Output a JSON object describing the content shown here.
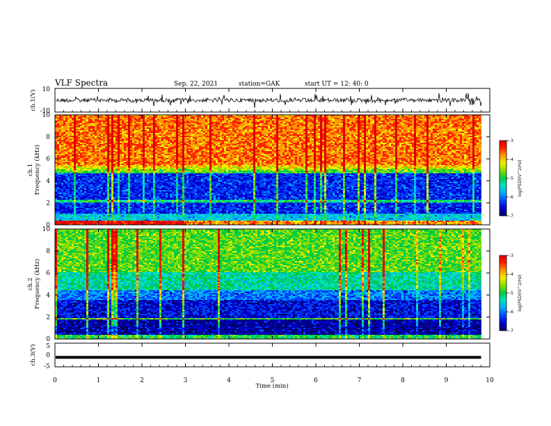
{
  "header": {
    "title": "VLF Spectra",
    "date": "Sep. 22, 2021",
    "station": "station=GAK",
    "start": "start UT =  12: 40: 0"
  },
  "chart_data": [
    {
      "type": "line",
      "name": "ch1-waveform",
      "ylabel": "ch.1(V)",
      "ylim": [
        -10,
        10
      ],
      "yticks": [
        "10",
        "-10"
      ],
      "xlim": [
        0,
        10
      ]
    },
    {
      "type": "heatmap",
      "name": "ch1-spectrogram",
      "ylabel": [
        "ch.1",
        "Frequency (kHz)"
      ],
      "ylim": [
        0,
        10
      ],
      "yticks": [
        "0",
        "2",
        "4",
        "6",
        "8",
        "10"
      ],
      "xlim": [
        0,
        10
      ],
      "colorbar": {
        "label": "log(PSD)(V^2/Hz)",
        "range": [
          -7,
          -3
        ],
        "ticks": [
          "-3",
          "-4",
          "-5",
          "-6",
          "-7"
        ]
      }
    },
    {
      "type": "heatmap",
      "name": "ch2-spectrogram",
      "ylabel": [
        "ch.2",
        "Frequency (kHz)"
      ],
      "ylim": [
        0,
        10
      ],
      "yticks": [
        "0",
        "2",
        "4",
        "6",
        "8",
        "10"
      ],
      "xlim": [
        0,
        10
      ],
      "colorbar": {
        "label": "log(PSD)(V^2/Hz)",
        "range": [
          -7,
          -3
        ],
        "ticks": [
          "-3",
          "-4",
          "-5",
          "-6",
          "-7"
        ]
      }
    },
    {
      "type": "line",
      "name": "ch3-trace",
      "ylabel": "ch.3(V)",
      "ylim": [
        -5,
        5
      ],
      "yticks": [
        "5",
        "0",
        "-5"
      ],
      "series": [
        {
          "x": [
            0,
            9.8
          ],
          "y": [
            -1,
            -1
          ]
        }
      ],
      "xlabel": "Time (min)",
      "xlim": [
        0,
        10
      ],
      "xticks": [
        "0",
        "1",
        "2",
        "3",
        "4",
        "5",
        "6",
        "7",
        "8",
        "9",
        "10"
      ]
    }
  ],
  "colors": {
    "colormap": [
      "#000066",
      "#0000cc",
      "#0044ff",
      "#00aaff",
      "#00e0c0",
      "#00cc44",
      "#88dd00",
      "#eeee00",
      "#ff9900",
      "#ff2200",
      "#dd0000"
    ]
  }
}
